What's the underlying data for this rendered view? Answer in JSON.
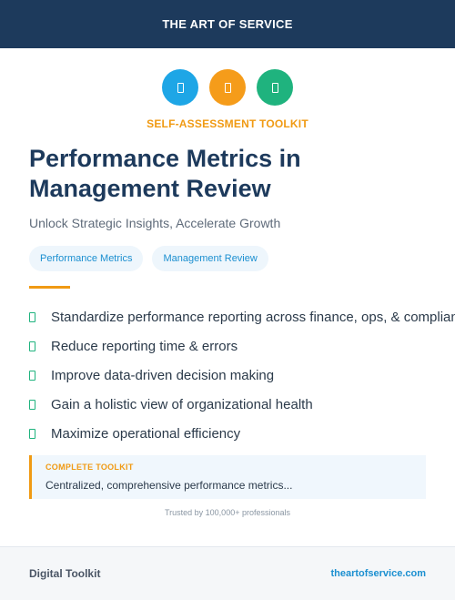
{
  "header": {
    "brand": "THE ART OF SERVICE"
  },
  "icons": [
    {
      "name": "document-icon",
      "color": "#1ea6e6"
    },
    {
      "name": "document-icon",
      "color": "#f59c1a"
    },
    {
      "name": "document-icon",
      "color": "#1fb37e"
    }
  ],
  "hero": {
    "eyebrow": "SELF-ASSESSMENT TOOLKIT",
    "title": "Performance Metrics in Management Review",
    "subtitle": "Unlock Strategic Insights, Accelerate Growth",
    "tags": [
      "Performance Metrics",
      "Management Review"
    ]
  },
  "benefits": [
    "Standardize performance reporting across finance, ops, & compliance",
    "Reduce reporting time & errors",
    "Improve data-driven decision making",
    "Gain a holistic view of organizational health",
    "Maximize operational efficiency"
  ],
  "callout": {
    "label": "COMPLETE TOOLKIT",
    "body": "Centralized, comprehensive performance metrics..."
  },
  "trusted": "Trusted by 100,000+ professionals",
  "footer": {
    "left": "Digital Toolkit",
    "right": "theartofservice.com"
  }
}
